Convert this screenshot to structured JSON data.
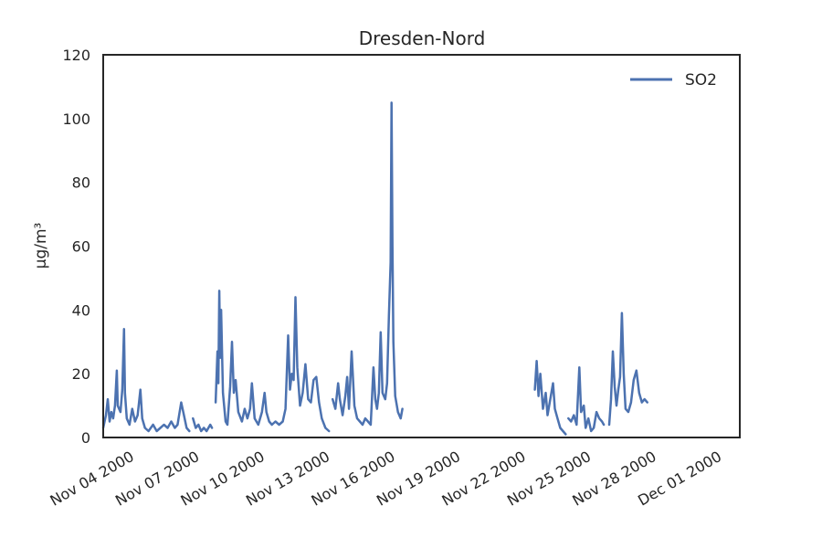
{
  "chart_data": {
    "type": "line",
    "title": "Dresden-Nord",
    "xlabel": "",
    "ylabel": "µg/m³",
    "ylim": [
      0,
      120
    ],
    "xlim": [
      "2000-11-02 18:00",
      "2000-12-02 00:00"
    ],
    "yticks": [
      "0",
      "20",
      "40",
      "60",
      "80",
      "100",
      "120"
    ],
    "xticks": [
      {
        "date": "2000-11-04",
        "label": "Nov 04 2000"
      },
      {
        "date": "2000-11-07",
        "label": "Nov 07 2000"
      },
      {
        "date": "2000-11-10",
        "label": "Nov 10 2000"
      },
      {
        "date": "2000-11-13",
        "label": "Nov 13 2000"
      },
      {
        "date": "2000-11-16",
        "label": "Nov 16 2000"
      },
      {
        "date": "2000-11-19",
        "label": "Nov 19 2000"
      },
      {
        "date": "2000-11-22",
        "label": "Nov 22 2000"
      },
      {
        "date": "2000-11-25",
        "label": "Nov 25 2000"
      },
      {
        "date": "2000-11-28",
        "label": "Nov 28 2000"
      },
      {
        "date": "2000-12-01",
        "label": "Dec 01 2000"
      }
    ],
    "grid": false,
    "legend_position": "top-right",
    "series": [
      {
        "name": "SO2",
        "color": "#4c72b0",
        "segments": [
          [
            [
              "2000-11-02 18:00",
              3
            ],
            [
              "2000-11-02 21:00",
              7
            ],
            [
              "2000-11-02 23:00",
              12
            ],
            [
              "2000-11-03 01:00",
              5
            ],
            [
              "2000-11-03 03:00",
              8
            ],
            [
              "2000-11-03 05:00",
              6
            ],
            [
              "2000-11-03 07:00",
              10
            ],
            [
              "2000-11-03 09:00",
              21
            ],
            [
              "2000-11-03 10:00",
              10
            ],
            [
              "2000-11-03 13:00",
              8
            ],
            [
              "2000-11-03 15:00",
              15
            ],
            [
              "2000-11-03 17:00",
              34
            ],
            [
              "2000-11-03 18:00",
              14
            ],
            [
              "2000-11-03 20:00",
              6
            ],
            [
              "2000-11-03 23:00",
              4
            ],
            [
              "2000-11-04 02:00",
              9
            ],
            [
              "2000-11-04 05:00",
              5
            ],
            [
              "2000-11-04 08:00",
              7
            ],
            [
              "2000-11-04 11:00",
              15
            ],
            [
              "2000-11-04 13:00",
              6
            ],
            [
              "2000-11-04 16:00",
              3
            ],
            [
              "2000-11-04 20:00",
              2
            ],
            [
              "2000-11-05 01:00",
              4
            ],
            [
              "2000-11-05 05:00",
              2
            ],
            [
              "2000-11-05 09:00",
              3
            ],
            [
              "2000-11-05 13:00",
              4
            ],
            [
              "2000-11-05 17:00",
              3
            ],
            [
              "2000-11-05 21:00",
              5
            ],
            [
              "2000-11-06 01:00",
              3
            ],
            [
              "2000-11-06 04:00",
              4
            ],
            [
              "2000-11-06 08:00",
              11
            ],
            [
              "2000-11-06 11:00",
              7
            ],
            [
              "2000-11-06 14:00",
              3
            ],
            [
              "2000-11-06 17:00",
              2
            ]
          ],
          [
            [
              "2000-11-06 21:00",
              6
            ],
            [
              "2000-11-07 00:00",
              3
            ],
            [
              "2000-11-07 03:00",
              4
            ],
            [
              "2000-11-07 06:00",
              2
            ],
            [
              "2000-11-07 09:00",
              3
            ],
            [
              "2000-11-07 12:00",
              2
            ],
            [
              "2000-11-07 16:00",
              4
            ],
            [
              "2000-11-07 18:00",
              3
            ]
          ],
          [
            [
              "2000-11-07 22:00",
              11
            ],
            [
              "2000-11-08 00:00",
              27
            ],
            [
              "2000-11-08 01:00",
              17
            ],
            [
              "2000-11-08 02:00",
              46
            ],
            [
              "2000-11-08 03:00",
              25
            ],
            [
              "2000-11-08 04:00",
              40
            ],
            [
              "2000-11-08 06:00",
              14
            ],
            [
              "2000-11-08 09:00",
              5
            ],
            [
              "2000-11-08 11:00",
              4
            ],
            [
              "2000-11-08 14:00",
              16
            ],
            [
              "2000-11-08 16:00",
              30
            ],
            [
              "2000-11-08 18:00",
              14
            ],
            [
              "2000-11-08 20:00",
              18
            ],
            [
              "2000-11-08 23:00",
              8
            ],
            [
              "2000-11-09 03:00",
              5
            ],
            [
              "2000-11-09 06:00",
              9
            ],
            [
              "2000-11-09 09:00",
              6
            ],
            [
              "2000-11-09 12:00",
              9
            ],
            [
              "2000-11-09 14:00",
              17
            ],
            [
              "2000-11-09 17:00",
              6
            ],
            [
              "2000-11-09 21:00",
              4
            ],
            [
              "2000-11-10 01:00",
              8
            ],
            [
              "2000-11-10 04:00",
              14
            ],
            [
              "2000-11-10 06:00",
              8
            ],
            [
              "2000-11-10 09:00",
              5
            ],
            [
              "2000-11-10 12:00",
              4
            ],
            [
              "2000-11-10 16:00",
              5
            ],
            [
              "2000-11-10 20:00",
              4
            ],
            [
              "2000-11-11 00:00",
              5
            ],
            [
              "2000-11-11 03:00",
              9
            ],
            [
              "2000-11-11 06:00",
              32
            ],
            [
              "2000-11-11 08:00",
              15
            ],
            [
              "2000-11-11 10:00",
              20
            ],
            [
              "2000-11-11 12:00",
              18
            ],
            [
              "2000-11-11 14:00",
              44
            ],
            [
              "2000-11-11 16:00",
              22
            ],
            [
              "2000-11-11 19:00",
              10
            ],
            [
              "2000-11-11 22:00",
              14
            ],
            [
              "2000-11-12 01:00",
              23
            ],
            [
              "2000-11-12 04:00",
              12
            ],
            [
              "2000-11-12 07:00",
              11
            ],
            [
              "2000-11-12 10:00",
              18
            ],
            [
              "2000-11-12 13:00",
              19
            ],
            [
              "2000-11-12 16:00",
              11
            ],
            [
              "2000-11-12 19:00",
              6
            ],
            [
              "2000-11-12 23:00",
              3
            ],
            [
              "2000-11-13 03:00",
              2
            ]
          ],
          [
            [
              "2000-11-13 07:00",
              12
            ],
            [
              "2000-11-13 10:00",
              9
            ],
            [
              "2000-11-13 13:00",
              17
            ],
            [
              "2000-11-13 15:00",
              12
            ],
            [
              "2000-11-13 18:00",
              7
            ],
            [
              "2000-11-13 21:00",
              13
            ],
            [
              "2000-11-13 23:00",
              19
            ],
            [
              "2000-11-14 01:00",
              9
            ],
            [
              "2000-11-14 04:00",
              27
            ],
            [
              "2000-11-14 07:00",
              10
            ],
            [
              "2000-11-14 10:00",
              6
            ],
            [
              "2000-11-14 13:00",
              5
            ],
            [
              "2000-11-14 16:00",
              4
            ],
            [
              "2000-11-14 19:00",
              6
            ],
            [
              "2000-11-14 22:00",
              5
            ],
            [
              "2000-11-15 01:00",
              4
            ],
            [
              "2000-11-15 04:00",
              22
            ],
            [
              "2000-11-15 06:00",
              12
            ],
            [
              "2000-11-15 08:00",
              9
            ],
            [
              "2000-11-15 10:00",
              14
            ],
            [
              "2000-11-15 12:00",
              33
            ],
            [
              "2000-11-15 14:00",
              14
            ],
            [
              "2000-11-15 17:00",
              12
            ],
            [
              "2000-11-15 19:00",
              17
            ],
            [
              "2000-11-15 21:00",
              38
            ],
            [
              "2000-11-15 23:00",
              55
            ],
            [
              "2000-11-16 00:00",
              105
            ],
            [
              "2000-11-16 01:00",
              60
            ],
            [
              "2000-11-16 02:00",
              30
            ],
            [
              "2000-11-16 04:00",
              13
            ],
            [
              "2000-11-16 07:00",
              8
            ],
            [
              "2000-11-16 10:00",
              6
            ],
            [
              "2000-11-16 12:00",
              9
            ]
          ],
          [
            [
              "2000-11-22 14:00",
              15
            ],
            [
              "2000-11-22 16:00",
              24
            ],
            [
              "2000-11-22 18:00",
              13
            ],
            [
              "2000-11-22 20:00",
              20
            ],
            [
              "2000-11-22 23:00",
              9
            ],
            [
              "2000-11-23 02:00",
              14
            ],
            [
              "2000-11-23 04:00",
              7
            ],
            [
              "2000-11-23 07:00",
              12
            ],
            [
              "2000-11-23 10:00",
              17
            ],
            [
              "2000-11-23 12:00",
              9
            ],
            [
              "2000-11-23 15:00",
              6
            ],
            [
              "2000-11-23 18:00",
              3
            ],
            [
              "2000-11-23 21:00",
              2
            ],
            [
              "2000-11-24 00:00",
              1
            ]
          ],
          [
            [
              "2000-11-24 03:00",
              6
            ],
            [
              "2000-11-24 06:00",
              5
            ],
            [
              "2000-11-24 09:00",
              7
            ],
            [
              "2000-11-24 12:00",
              4
            ],
            [
              "2000-11-24 15:00",
              22
            ],
            [
              "2000-11-24 17:00",
              8
            ],
            [
              "2000-11-24 20:00",
              10
            ],
            [
              "2000-11-24 22:00",
              3
            ],
            [
              "2000-11-25 01:00",
              6
            ],
            [
              "2000-11-25 04:00",
              2
            ],
            [
              "2000-11-25 07:00",
              3
            ],
            [
              "2000-11-25 10:00",
              8
            ],
            [
              "2000-11-25 13:00",
              6
            ],
            [
              "2000-11-25 16:00",
              5
            ],
            [
              "2000-11-25 18:00",
              4
            ]
          ],
          [
            [
              "2000-11-26 00:00",
              4
            ],
            [
              "2000-11-26 02:00",
              12
            ],
            [
              "2000-11-26 04:00",
              27
            ],
            [
              "2000-11-26 06:00",
              16
            ],
            [
              "2000-11-26 08:00",
              10
            ],
            [
              "2000-11-26 10:00",
              15
            ],
            [
              "2000-11-26 12:00",
              19
            ],
            [
              "2000-11-26 14:00",
              39
            ],
            [
              "2000-11-26 16:00",
              20
            ],
            [
              "2000-11-26 18:00",
              9
            ],
            [
              "2000-11-26 21:00",
              8
            ],
            [
              "2000-11-27 00:00",
              11
            ],
            [
              "2000-11-27 03:00",
              18
            ],
            [
              "2000-11-27 06:00",
              21
            ],
            [
              "2000-11-27 09:00",
              14
            ],
            [
              "2000-11-27 12:00",
              11
            ],
            [
              "2000-11-27 15:00",
              12
            ],
            [
              "2000-11-27 18:00",
              11
            ]
          ]
        ]
      }
    ]
  }
}
